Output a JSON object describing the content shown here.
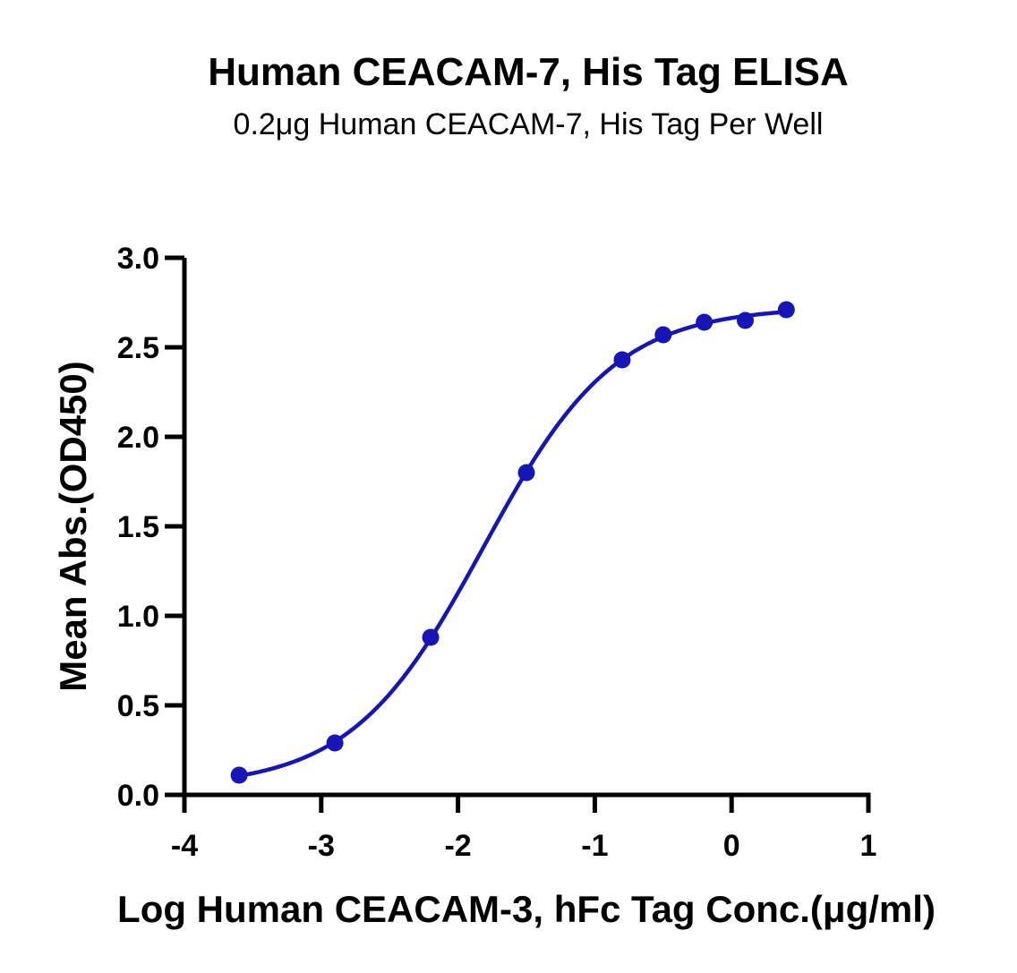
{
  "chart_data": {
    "type": "scatter",
    "title": "Human CEACAM-7, His Tag ELISA",
    "subtitle": "0.2μg Human CEACAM-7, His Tag Per Well",
    "xlabel": "Log Human CEACAM-3, hFc Tag Conc.(μg/ml)",
    "ylabel": "Mean Abs.(OD450)",
    "xlim": [
      -4,
      1
    ],
    "ylim": [
      0,
      3.0
    ],
    "x_ticks": [
      -4,
      -3,
      -2,
      -1,
      0,
      1
    ],
    "x_tick_labels": [
      "-4",
      "-3",
      "-2",
      "-1",
      "0",
      "1"
    ],
    "y_ticks": [
      0,
      0.5,
      1.0,
      1.5,
      2.0,
      2.5,
      3.0
    ],
    "y_tick_labels": [
      "0.0",
      "0.5",
      "1.0",
      "1.5",
      "2.0",
      "2.5",
      "3.0"
    ],
    "grid": false,
    "series": [
      {
        "x": [
          -3.6,
          -2.9,
          -2.2,
          -1.5,
          -0.8,
          -0.5,
          -0.2,
          0.1,
          0.4
        ],
        "y": [
          0.11,
          0.29,
          0.88,
          1.8,
          2.43,
          2.57,
          2.64,
          2.65,
          2.71
        ],
        "color": "#1515b8",
        "fit": "four-parameter-logistic"
      }
    ]
  }
}
